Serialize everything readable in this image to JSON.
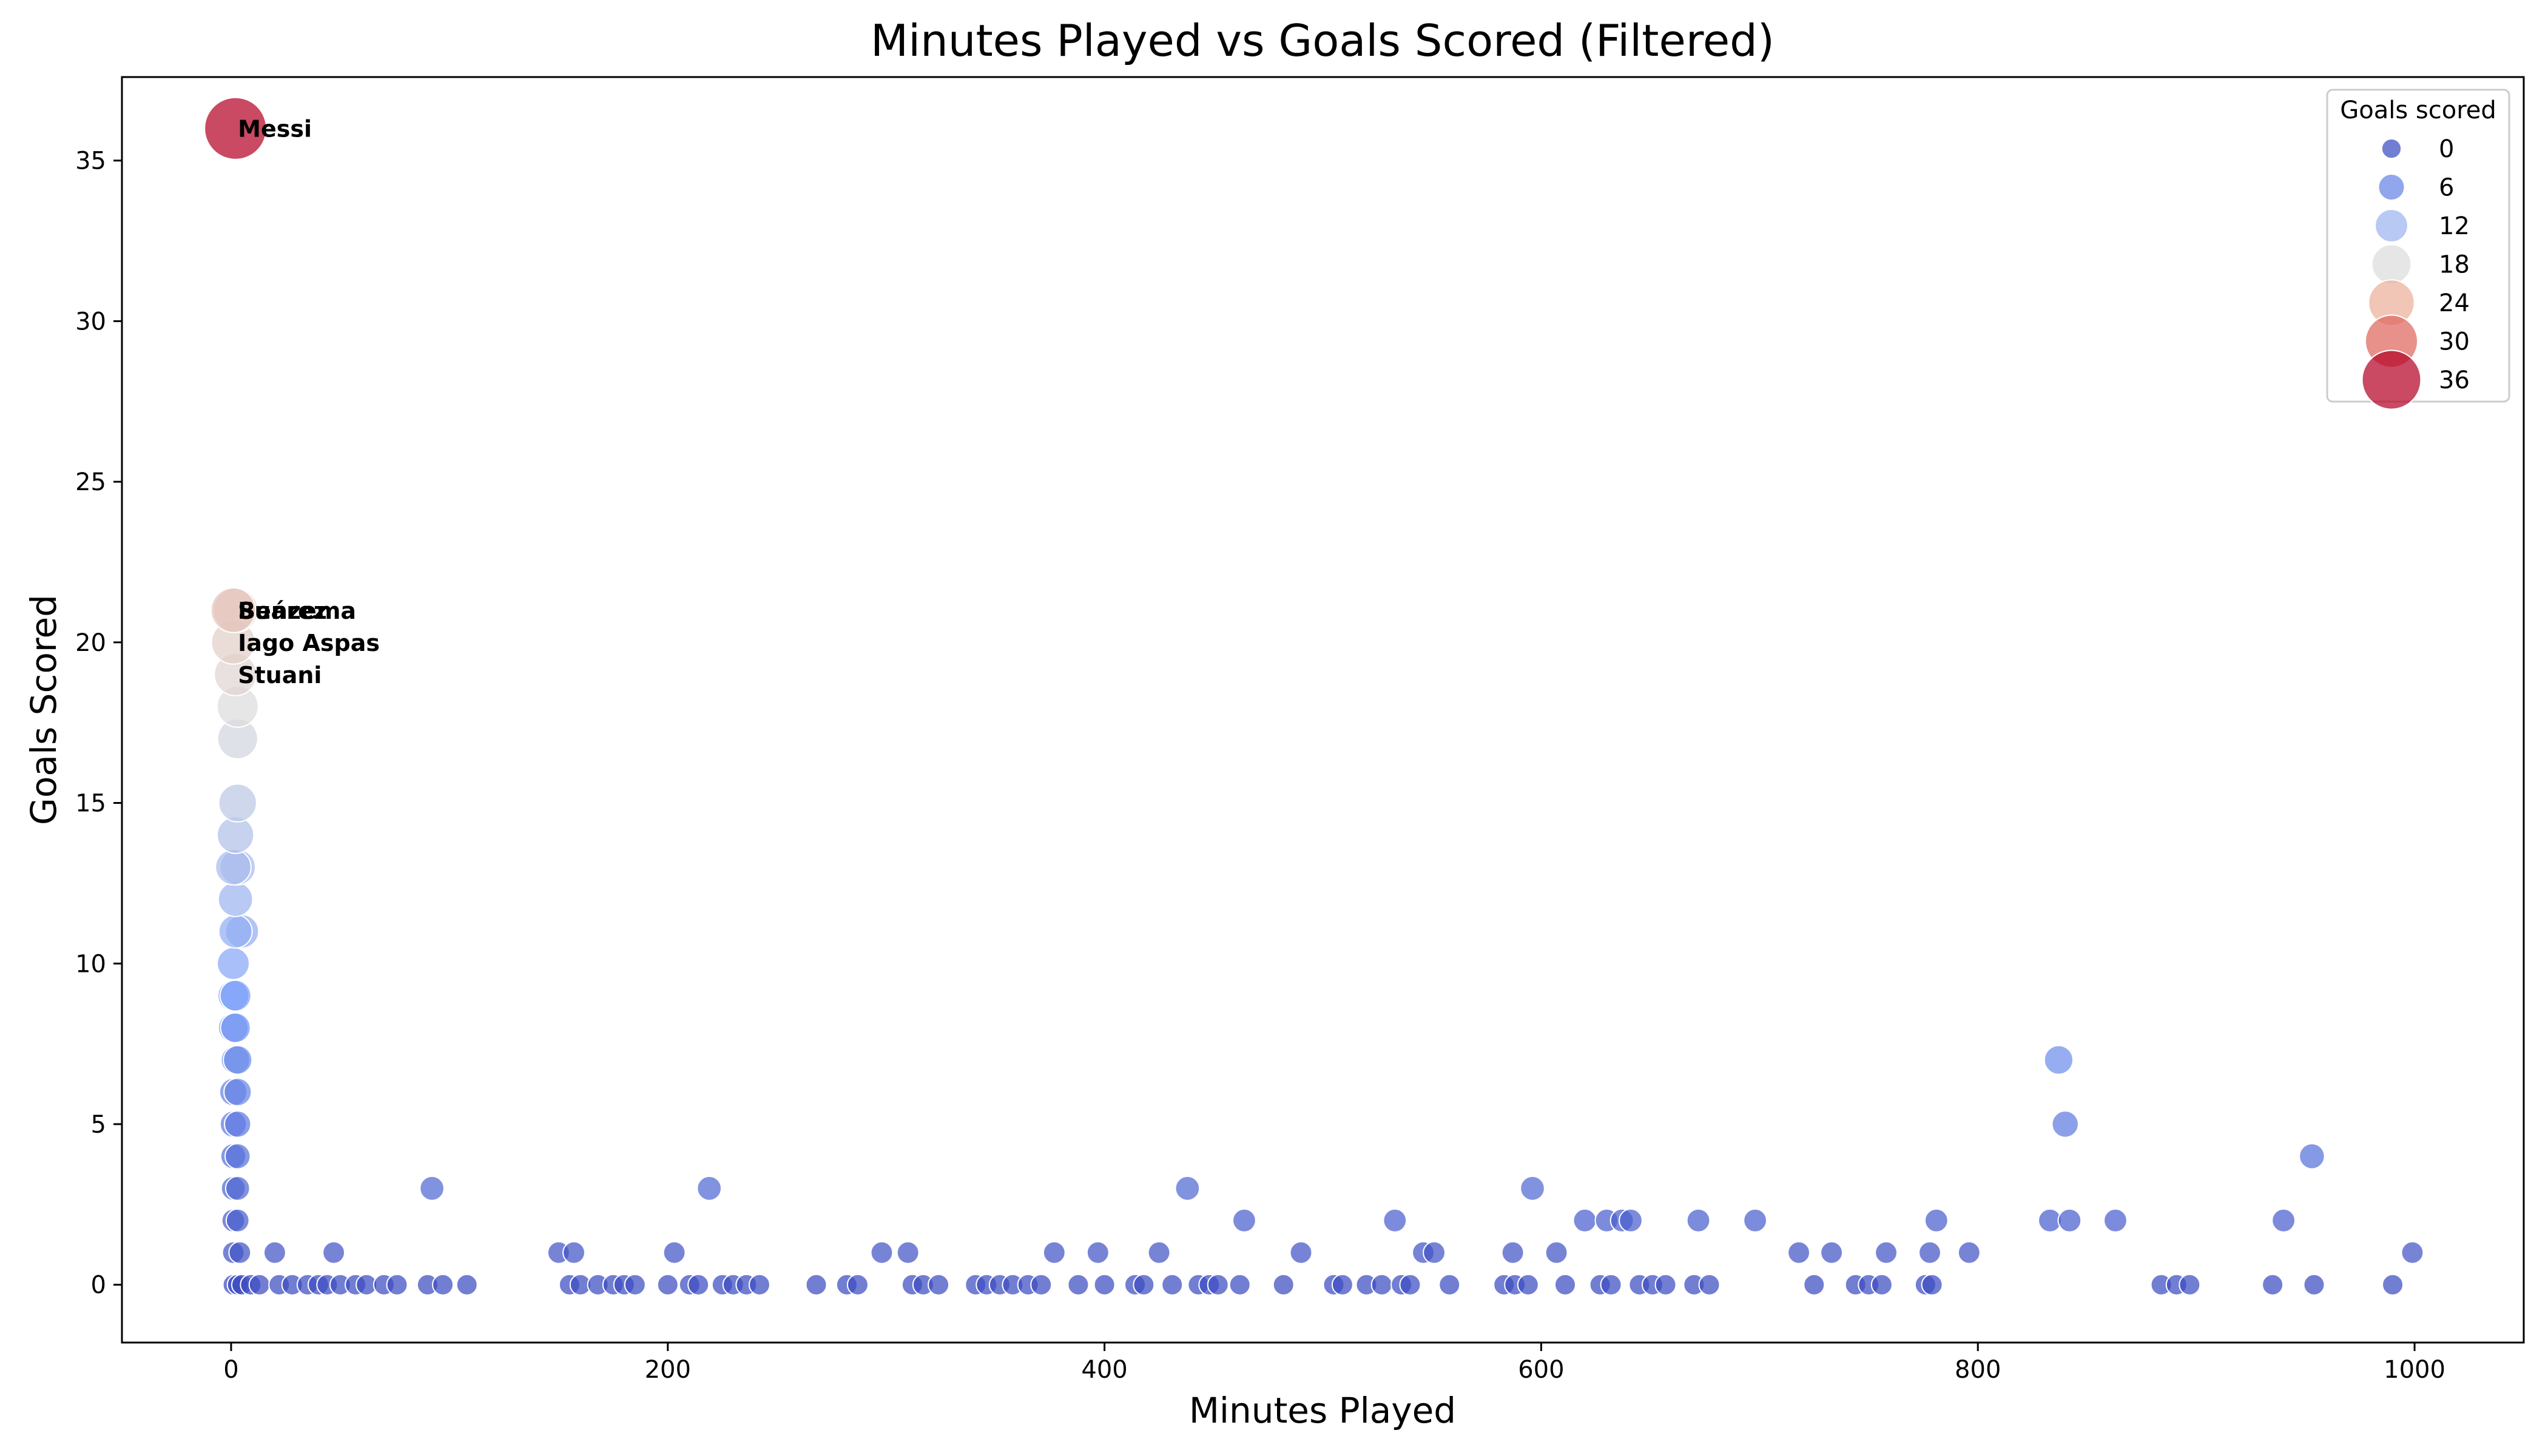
{
  "chart_data": {
    "type": "scatter",
    "title": "Minutes Played vs Goals Scored (Filtered)",
    "xlabel": "Minutes Played",
    "ylabel": "Goals Scored",
    "xlim": [
      -50,
      1050
    ],
    "ylim": [
      -1.8,
      37.6
    ],
    "xticks": [
      0,
      200,
      400,
      600,
      800,
      1000
    ],
    "yticks": [
      0,
      5,
      10,
      15,
      20,
      25,
      30,
      35
    ],
    "grid": false,
    "legend": {
      "title": "Goals scored",
      "placement": "top-right",
      "entries": [
        {
          "label": "0",
          "value": 0
        },
        {
          "label": "6",
          "value": 6
        },
        {
          "label": "12",
          "value": 12
        },
        {
          "label": "18",
          "value": 18
        },
        {
          "label": "24",
          "value": 24
        },
        {
          "label": "30",
          "value": 30
        },
        {
          "label": "36",
          "value": 36
        }
      ]
    },
    "colormap": "coolwarm",
    "size_encodes": "goals",
    "color_encodes": "goals",
    "annotations": [
      {
        "text": "Messi",
        "x": 2,
        "y": 36
      },
      {
        "text": "Benzema",
        "x": 2,
        "y": 21
      },
      {
        "text": "Suárez",
        "x": 2,
        "y": 21
      },
      {
        "text": "Iago Aspas",
        "x": 2,
        "y": 20
      },
      {
        "text": "Stuani",
        "x": 2,
        "y": 19
      }
    ],
    "points": [
      {
        "x": 2,
        "y": 36
      },
      {
        "x": 2,
        "y": 21
      },
      {
        "x": 1,
        "y": 21
      },
      {
        "x": 1,
        "y": 20
      },
      {
        "x": 2,
        "y": 19
      },
      {
        "x": 3,
        "y": 18
      },
      {
        "x": 3,
        "y": 17
      },
      {
        "x": 3,
        "y": 15
      },
      {
        "x": 2,
        "y": 14
      },
      {
        "x": 3,
        "y": 13
      },
      {
        "x": 1,
        "y": 13
      },
      {
        "x": 2,
        "y": 12
      },
      {
        "x": 5,
        "y": 11
      },
      {
        "x": 2,
        "y": 11
      },
      {
        "x": 1,
        "y": 10
      },
      {
        "x": 1,
        "y": 9
      },
      {
        "x": 2,
        "y": 9
      },
      {
        "x": 1,
        "y": 8
      },
      {
        "x": 2,
        "y": 8
      },
      {
        "x": 2,
        "y": 7
      },
      {
        "x": 3,
        "y": 7
      },
      {
        "x": 1,
        "y": 6
      },
      {
        "x": 3,
        "y": 6
      },
      {
        "x": 1,
        "y": 5
      },
      {
        "x": 3,
        "y": 5
      },
      {
        "x": 1,
        "y": 4
      },
      {
        "x": 3,
        "y": 4
      },
      {
        "x": 1,
        "y": 3
      },
      {
        "x": 3,
        "y": 3
      },
      {
        "x": 1,
        "y": 2
      },
      {
        "x": 3,
        "y": 2
      },
      {
        "x": 1,
        "y": 1
      },
      {
        "x": 4,
        "y": 1
      },
      {
        "x": 1,
        "y": 0
      },
      {
        "x": 3,
        "y": 0
      },
      {
        "x": 5,
        "y": 0
      },
      {
        "x": 9,
        "y": 0
      },
      {
        "x": 13,
        "y": 0
      },
      {
        "x": 20,
        "y": 1
      },
      {
        "x": 22,
        "y": 0
      },
      {
        "x": 28,
        "y": 0
      },
      {
        "x": 35,
        "y": 0
      },
      {
        "x": 40,
        "y": 0
      },
      {
        "x": 44,
        "y": 0
      },
      {
        "x": 47,
        "y": 1
      },
      {
        "x": 50,
        "y": 0
      },
      {
        "x": 57,
        "y": 0
      },
      {
        "x": 62,
        "y": 0
      },
      {
        "x": 70,
        "y": 0
      },
      {
        "x": 76,
        "y": 0
      },
      {
        "x": 90,
        "y": 0
      },
      {
        "x": 92,
        "y": 3
      },
      {
        "x": 97,
        "y": 0
      },
      {
        "x": 108,
        "y": 0
      },
      {
        "x": 150,
        "y": 1
      },
      {
        "x": 155,
        "y": 0
      },
      {
        "x": 157,
        "y": 1
      },
      {
        "x": 160,
        "y": 0
      },
      {
        "x": 168,
        "y": 0
      },
      {
        "x": 175,
        "y": 0
      },
      {
        "x": 180,
        "y": 0
      },
      {
        "x": 185,
        "y": 0
      },
      {
        "x": 200,
        "y": 0
      },
      {
        "x": 203,
        "y": 1
      },
      {
        "x": 210,
        "y": 0
      },
      {
        "x": 214,
        "y": 0
      },
      {
        "x": 219,
        "y": 3
      },
      {
        "x": 225,
        "y": 0
      },
      {
        "x": 230,
        "y": 0
      },
      {
        "x": 236,
        "y": 0
      },
      {
        "x": 242,
        "y": 0
      },
      {
        "x": 268,
        "y": 0
      },
      {
        "x": 282,
        "y": 0
      },
      {
        "x": 287,
        "y": 0
      },
      {
        "x": 298,
        "y": 1
      },
      {
        "x": 310,
        "y": 1
      },
      {
        "x": 312,
        "y": 0
      },
      {
        "x": 317,
        "y": 0
      },
      {
        "x": 324,
        "y": 0
      },
      {
        "x": 341,
        "y": 0
      },
      {
        "x": 346,
        "y": 0
      },
      {
        "x": 352,
        "y": 0
      },
      {
        "x": 358,
        "y": 0
      },
      {
        "x": 365,
        "y": 0
      },
      {
        "x": 371,
        "y": 0
      },
      {
        "x": 377,
        "y": 1
      },
      {
        "x": 388,
        "y": 0
      },
      {
        "x": 397,
        "y": 1
      },
      {
        "x": 400,
        "y": 0
      },
      {
        "x": 414,
        "y": 0
      },
      {
        "x": 418,
        "y": 0
      },
      {
        "x": 425,
        "y": 1
      },
      {
        "x": 431,
        "y": 0
      },
      {
        "x": 438,
        "y": 3
      },
      {
        "x": 443,
        "y": 0
      },
      {
        "x": 448,
        "y": 0
      },
      {
        "x": 452,
        "y": 0
      },
      {
        "x": 462,
        "y": 0
      },
      {
        "x": 464,
        "y": 2
      },
      {
        "x": 482,
        "y": 0
      },
      {
        "x": 490,
        "y": 1
      },
      {
        "x": 505,
        "y": 0
      },
      {
        "x": 509,
        "y": 0
      },
      {
        "x": 520,
        "y": 0
      },
      {
        "x": 527,
        "y": 0
      },
      {
        "x": 533,
        "y": 2
      },
      {
        "x": 536,
        "y": 0
      },
      {
        "x": 540,
        "y": 0
      },
      {
        "x": 546,
        "y": 1
      },
      {
        "x": 551,
        "y": 1
      },
      {
        "x": 558,
        "y": 0
      },
      {
        "x": 583,
        "y": 0
      },
      {
        "x": 587,
        "y": 1
      },
      {
        "x": 588,
        "y": 0
      },
      {
        "x": 594,
        "y": 0
      },
      {
        "x": 596,
        "y": 3
      },
      {
        "x": 607,
        "y": 1
      },
      {
        "x": 611,
        "y": 0
      },
      {
        "x": 620,
        "y": 2
      },
      {
        "x": 627,
        "y": 0
      },
      {
        "x": 630,
        "y": 2
      },
      {
        "x": 632,
        "y": 0
      },
      {
        "x": 637,
        "y": 2
      },
      {
        "x": 641,
        "y": 2
      },
      {
        "x": 645,
        "y": 0
      },
      {
        "x": 651,
        "y": 0
      },
      {
        "x": 657,
        "y": 0
      },
      {
        "x": 670,
        "y": 0
      },
      {
        "x": 672,
        "y": 2
      },
      {
        "x": 677,
        "y": 0
      },
      {
        "x": 698,
        "y": 2
      },
      {
        "x": 718,
        "y": 1
      },
      {
        "x": 725,
        "y": 0
      },
      {
        "x": 733,
        "y": 1
      },
      {
        "x": 744,
        "y": 0
      },
      {
        "x": 750,
        "y": 0
      },
      {
        "x": 756,
        "y": 0
      },
      {
        "x": 758,
        "y": 1
      },
      {
        "x": 776,
        "y": 0
      },
      {
        "x": 778,
        "y": 1
      },
      {
        "x": 779,
        "y": 0
      },
      {
        "x": 781,
        "y": 2
      },
      {
        "x": 796,
        "y": 1
      },
      {
        "x": 833,
        "y": 2
      },
      {
        "x": 837,
        "y": 7
      },
      {
        "x": 840,
        "y": 5
      },
      {
        "x": 842,
        "y": 2
      },
      {
        "x": 863,
        "y": 2
      },
      {
        "x": 884,
        "y": 0
      },
      {
        "x": 891,
        "y": 0
      },
      {
        "x": 897,
        "y": 0
      },
      {
        "x": 935,
        "y": 0
      },
      {
        "x": 940,
        "y": 2
      },
      {
        "x": 953,
        "y": 4
      },
      {
        "x": 954,
        "y": 0
      },
      {
        "x": 990,
        "y": 0
      },
      {
        "x": 999,
        "y": 1
      }
    ]
  }
}
